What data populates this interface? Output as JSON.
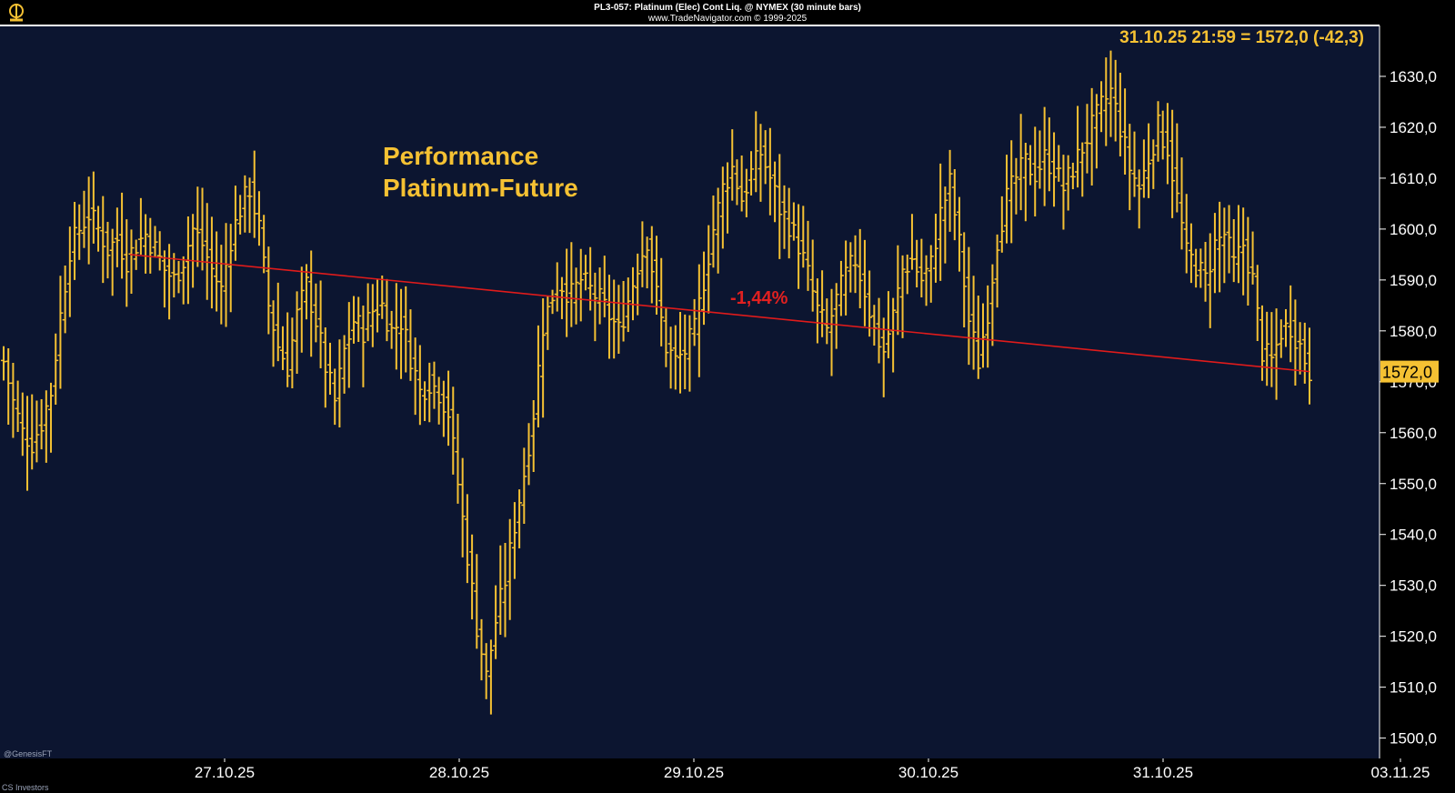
{
  "header": {
    "title": "PL3-057: Platinum (Elec) Cont Liq. @ NYMEX (30 minute bars)",
    "copyright": "www.TradeNavigator.com © 1999-2025"
  },
  "footer": {
    "left_top": "@GenesisFT",
    "left_bottom": "CS Investors"
  },
  "colors": {
    "background": "#0c1530",
    "bars": "#f5c133",
    "trendline": "#e01b1b",
    "annotation": "#e02020",
    "axis_text": "#ffffff",
    "price_tag_bg": "#f5c133"
  },
  "chart_data": {
    "type": "bar",
    "subtype": "ohlc_bars",
    "title": "Performance\nPlatinum-Future",
    "title_lines": [
      "Performance",
      "Platinum-Future"
    ],
    "xlabel": "",
    "ylabel": "",
    "ylim": [
      1496,
      1640
    ],
    "y_ticks": [
      1500,
      1510,
      1520,
      1530,
      1540,
      1550,
      1560,
      1570,
      1580,
      1590,
      1600,
      1610,
      1620,
      1630
    ],
    "y_tick_labels": [
      "1500,0",
      "1510,0",
      "1520,0",
      "1530,0",
      "1540,0",
      "1550,0",
      "1560,0",
      "1570,0",
      "1580,0",
      "1590,0",
      "1600,0",
      "1610,0",
      "1620,0",
      "1630,0"
    ],
    "x_tick_labels": [
      "27.10.25",
      "28.10.25",
      "29.10.25",
      "30.10.25",
      "31.10.25",
      "03.11.25"
    ],
    "last_quote": "31.10.25 21:59 = 1572,0 (-42,3)",
    "last_price_label": "1572,0",
    "last_price": 1572.0,
    "annotation": "-1,44%",
    "trendline": {
      "start": 1595.0,
      "end": 1572.0
    },
    "waypoints": [
      1574,
      1566,
      1560,
      1558,
      1562,
      1568,
      1583,
      1596,
      1600,
      1603,
      1600,
      1596,
      1598,
      1594,
      1597,
      1599,
      1596,
      1592,
      1590,
      1594,
      1600,
      1597,
      1592,
      1588,
      1598,
      1604,
      1608,
      1600,
      1585,
      1577,
      1573,
      1583,
      1589,
      1582,
      1573,
      1566,
      1576,
      1582,
      1580,
      1584,
      1585,
      1580,
      1582,
      1575,
      1568,
      1570,
      1568,
      1564,
      1550,
      1536,
      1522,
      1512,
      1523,
      1531,
      1542,
      1552,
      1564,
      1581,
      1587,
      1589,
      1587,
      1590,
      1588,
      1586,
      1583,
      1580,
      1586,
      1593,
      1598,
      1587,
      1577,
      1574,
      1576,
      1580,
      1590,
      1600,
      1608,
      1612,
      1606,
      1611,
      1615,
      1610,
      1604,
      1601,
      1597,
      1591,
      1584,
      1580,
      1586,
      1591,
      1594,
      1588,
      1580,
      1576,
      1583,
      1592,
      1594,
      1590,
      1593,
      1603,
      1609,
      1597,
      1582,
      1574,
      1584,
      1598,
      1606,
      1610,
      1613,
      1611,
      1614,
      1612,
      1608,
      1612,
      1616,
      1620,
      1624,
      1627,
      1620,
      1612,
      1608,
      1614,
      1620,
      1616,
      1606,
      1595,
      1593,
      1590,
      1597,
      1599,
      1593,
      1597,
      1590,
      1576,
      1574,
      1580,
      1581,
      1577,
      1572
    ]
  }
}
